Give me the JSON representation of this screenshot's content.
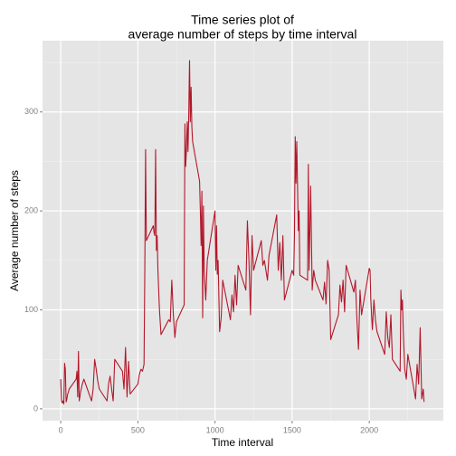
{
  "chart_data": {
    "type": "line",
    "title": [
      "Time series plot of",
      "average number of steps by time interval"
    ],
    "x_label": "Time interval",
    "y_label": "Average number of steps",
    "color": "#b2182b",
    "grid": true,
    "xlim": [
      -118,
      2480
    ],
    "ylim": [
      -12,
      372
    ],
    "xticks": [
      0,
      500,
      1000,
      1500,
      2000
    ],
    "yticks": [
      0,
      100,
      200,
      300
    ],
    "x": [
      0,
      5,
      10,
      15,
      20,
      25,
      30,
      35,
      40,
      45,
      50,
      55,
      100,
      105,
      110,
      115,
      120,
      130,
      140,
      150,
      200,
      210,
      220,
      230,
      240,
      250,
      300,
      310,
      320,
      330,
      340,
      350,
      400,
      410,
      420,
      430,
      440,
      450,
      500,
      510,
      520,
      530,
      540,
      545,
      550,
      555,
      600,
      605,
      610,
      615,
      620,
      625,
      630,
      640,
      650,
      700,
      710,
      720,
      730,
      740,
      750,
      800,
      805,
      810,
      815,
      820,
      825,
      830,
      835,
      840,
      845,
      850,
      855,
      900,
      905,
      910,
      915,
      920,
      925,
      930,
      940,
      950,
      1000,
      1005,
      1010,
      1015,
      1020,
      1030,
      1040,
      1050,
      1100,
      1110,
      1120,
      1130,
      1140,
      1150,
      1200,
      1210,
      1220,
      1230,
      1240,
      1250,
      1300,
      1310,
      1320,
      1330,
      1340,
      1350,
      1400,
      1410,
      1420,
      1430,
      1440,
      1450,
      1500,
      1510,
      1515,
      1520,
      1525,
      1530,
      1540,
      1545,
      1550,
      1600,
      1605,
      1610,
      1615,
      1620,
      1630,
      1640,
      1650,
      1700,
      1710,
      1720,
      1730,
      1740,
      1750,
      1800,
      1810,
      1820,
      1830,
      1840,
      1850,
      1900,
      1910,
      1920,
      1930,
      1940,
      1950,
      2000,
      2005,
      2010,
      2020,
      2030,
      2040,
      2050,
      2100,
      2110,
      2120,
      2130,
      2140,
      2150,
      2200,
      2205,
      2210,
      2215,
      2220,
      2230,
      2240,
      2250,
      2300,
      2310,
      2320,
      2330,
      2340,
      2350,
      2355
    ],
    "series": [
      {
        "name": "steps",
        "color": "#b2182b",
        "values": [
          30,
          8,
          6,
          8,
          5,
          46,
          40,
          7,
          10,
          15,
          17,
          20,
          30,
          38,
          12,
          58,
          8,
          18,
          25,
          30,
          8,
          20,
          50,
          40,
          28,
          20,
          8,
          25,
          33,
          20,
          8,
          50,
          38,
          20,
          62,
          12,
          48,
          15,
          25,
          35,
          40,
          38,
          45,
          140,
          262,
          170,
          185,
          178,
          175,
          262,
          160,
          175,
          140,
          100,
          75,
          90,
          88,
          130,
          95,
          72,
          88,
          105,
          288,
          245,
          262,
          290,
          260,
          300,
          352,
          290,
          325,
          285,
          270,
          230,
          200,
          165,
          220,
          92,
          205,
          140,
          110,
          150,
          200,
          140,
          185,
          136,
          150,
          78,
          92,
          130,
          90,
          115,
          98,
          135,
          105,
          145,
          120,
          190,
          150,
          95,
          175,
          140,
          170,
          145,
          150,
          140,
          130,
          155,
          196,
          140,
          168,
          130,
          175,
          110,
          140,
          135,
          175,
          275,
          228,
          270,
          180,
          200,
          135,
          130,
          247,
          140,
          180,
          225,
          120,
          140,
          130,
          110,
          128,
          106,
          150,
          140,
          70,
          95,
          125,
          108,
          130,
          98,
          145,
          118,
          130,
          90,
          60,
          120,
          95,
          142,
          140,
          110,
          80,
          110,
          90,
          78,
          55,
          98,
          72,
          62,
          95,
          50,
          38,
          120,
          100,
          110,
          80,
          40,
          30,
          55,
          10,
          45,
          25,
          82,
          10,
          20,
          7
        ]
      }
    ]
  }
}
